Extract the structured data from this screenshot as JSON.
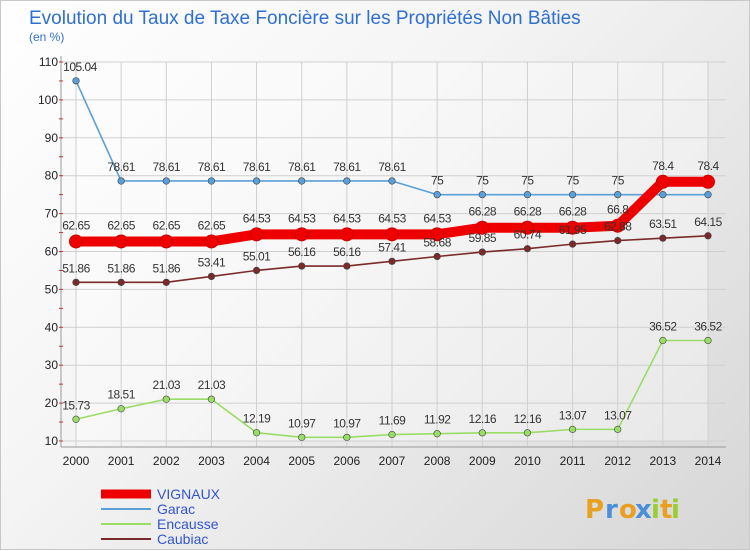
{
  "chart_data": {
    "type": "line",
    "title": "Evolution du Taux de Taxe Foncière sur les Propriétés Non Bâties",
    "subtitle": "(en %)",
    "x": [
      "2000",
      "2001",
      "2002",
      "2003",
      "2004",
      "2005",
      "2006",
      "2007",
      "2008",
      "2009",
      "2010",
      "2011",
      "2012",
      "2013",
      "2014"
    ],
    "ylim": [
      10,
      110
    ],
    "yticks": [
      10,
      20,
      30,
      40,
      50,
      60,
      70,
      80,
      90,
      100,
      110
    ],
    "grid": true,
    "legend_position": "bottom-left",
    "series": [
      {
        "name": "VIGNAUX",
        "color": "#ee0000",
        "values": [
          62.65,
          62.65,
          62.65,
          62.65,
          64.53,
          64.53,
          64.53,
          64.53,
          64.53,
          66.28,
          66.28,
          66.28,
          66.8,
          78.4,
          78.4
        ],
        "labels": [
          "62.65",
          "62.65",
          "62.65",
          "62.65",
          "64.53",
          "64.53",
          "64.53",
          "64.53",
          "64.53",
          "66.28",
          "66.28",
          "66.28",
          "66.8",
          "78.4",
          "78.4"
        ]
      },
      {
        "name": "Garac",
        "color": "#5aa0d8",
        "values": [
          105.04,
          78.61,
          78.61,
          78.61,
          78.61,
          78.61,
          78.61,
          78.61,
          75,
          75,
          75,
          75,
          75,
          75,
          75
        ],
        "labels": [
          "105.04",
          "78.61",
          "78.61",
          "78.61",
          "78.61",
          "78.61",
          "78.61",
          "78.61",
          "75",
          "75",
          "75",
          "75",
          "75",
          "",
          ""
        ]
      },
      {
        "name": "Encausse",
        "color": "#99dd66",
        "values": [
          15.73,
          18.51,
          21.03,
          21.03,
          12.19,
          10.97,
          10.97,
          11.69,
          11.92,
          12.16,
          12.16,
          13.07,
          13.07,
          36.52,
          36.52
        ],
        "labels": [
          "15.73",
          "18.51",
          "21.03",
          "21.03",
          "12.19",
          "10.97",
          "10.97",
          "11.69",
          "11.92",
          "12.16",
          "12.16",
          "13.07",
          "13.07",
          "36.52",
          "36.52"
        ]
      },
      {
        "name": "Caubiac",
        "color": "#7a2a2a",
        "values": [
          51.86,
          51.86,
          51.86,
          53.41,
          55.01,
          56.16,
          56.16,
          57.41,
          58.68,
          59.85,
          60.74,
          61.95,
          62.88,
          63.51,
          64.15
        ],
        "labels": [
          "51.86",
          "51.86",
          "51.86",
          "53.41",
          "55.01",
          "56.16",
          "56.16",
          "57.41",
          "58.68",
          "59.85",
          "60.74",
          "61.95",
          "62.88",
          "63.51",
          "64.15"
        ]
      }
    ]
  },
  "logo": {
    "letters": [
      "P",
      "r",
      "o",
      "x",
      "i",
      "t",
      "i"
    ],
    "colors": [
      "#e8a020",
      "#4a90d9",
      "#e8a020",
      "#4a90d9",
      "#9acd32",
      "#e8a020",
      "#9acd32"
    ]
  }
}
